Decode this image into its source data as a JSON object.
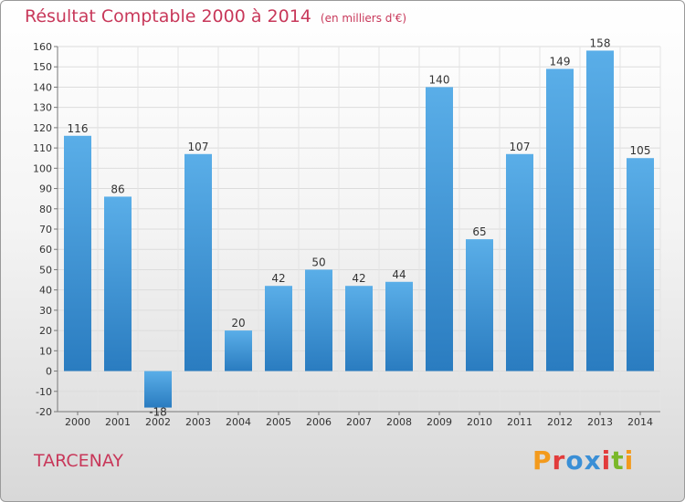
{
  "title": "Résultat Comptable 2000 à 2014",
  "subtitle": "(en milliers d'€)",
  "commune": "TARCENAY",
  "logo": {
    "text": "Proxiti",
    "colors": [
      "#f39a1c",
      "#e23c3c",
      "#3a8fd6",
      "#3a8fd6",
      "#e23c3c",
      "#7ab829",
      "#f39a1c"
    ]
  },
  "chart_data": {
    "type": "bar",
    "categories": [
      "2000",
      "2001",
      "2002",
      "2003",
      "2004",
      "2005",
      "2006",
      "2007",
      "2008",
      "2009",
      "2010",
      "2011",
      "2012",
      "2013",
      "2014"
    ],
    "values": [
      116,
      86,
      -18,
      107,
      20,
      42,
      50,
      42,
      44,
      140,
      65,
      107,
      149,
      158,
      105
    ],
    "ylim": [
      -20,
      160
    ],
    "yticks": [
      -20,
      -10,
      0,
      10,
      20,
      30,
      40,
      50,
      60,
      70,
      80,
      90,
      100,
      110,
      120,
      130,
      140,
      150,
      160
    ],
    "grid": true,
    "bar_color": "#3f96d8",
    "title": "Résultat Comptable 2000 à 2014",
    "xlabel": "",
    "ylabel": ""
  }
}
